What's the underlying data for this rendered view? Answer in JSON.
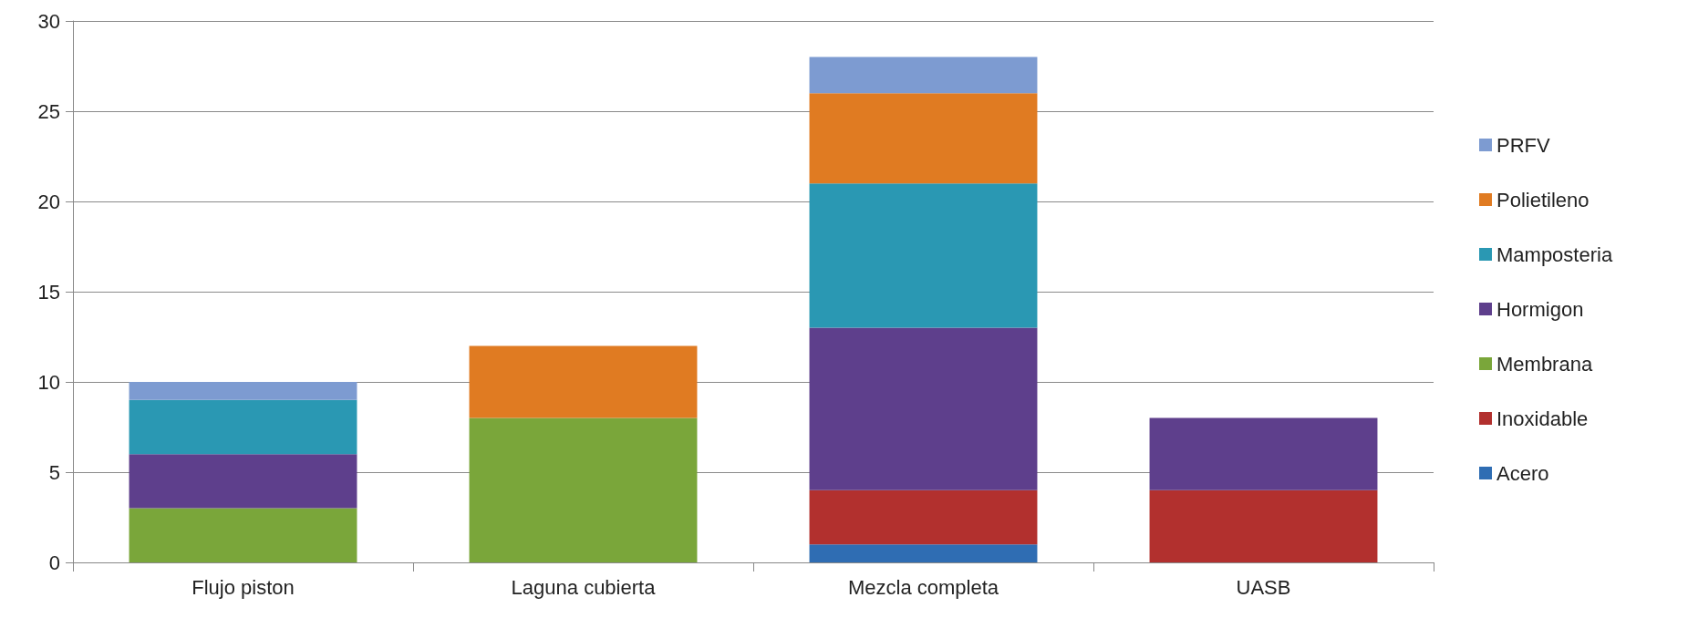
{
  "chart_data": {
    "type": "bar",
    "stacked": true,
    "categories": [
      "Flujo piston",
      "Laguna cubierta",
      "Mezcla completa",
      "UASB"
    ],
    "series": [
      {
        "name": "Acero",
        "color": "#2f6db3",
        "values": [
          0,
          0,
          1,
          0
        ]
      },
      {
        "name": "Inoxidable",
        "color": "#b2302e",
        "values": [
          0,
          0,
          3,
          4
        ]
      },
      {
        "name": "Membrana",
        "color": "#7aa63a",
        "values": [
          3,
          8,
          0,
          0
        ]
      },
      {
        "name": "Hormigon",
        "color": "#5e3f8c",
        "values": [
          3,
          0,
          9,
          4
        ]
      },
      {
        "name": "Mamposteria",
        "color": "#2a98b3",
        "values": [
          3,
          0,
          8,
          0
        ]
      },
      {
        "name": "Polietileno",
        "color": "#e07b22",
        "values": [
          0,
          4,
          5,
          0
        ]
      },
      {
        "name": "PRFV",
        "color": "#7d9bd1",
        "values": [
          1,
          0,
          2,
          0
        ]
      }
    ],
    "ylim": [
      0,
      30
    ],
    "yticks": [
      0,
      5,
      10,
      15,
      20,
      25,
      30
    ],
    "grid": "y",
    "legend": "right"
  }
}
